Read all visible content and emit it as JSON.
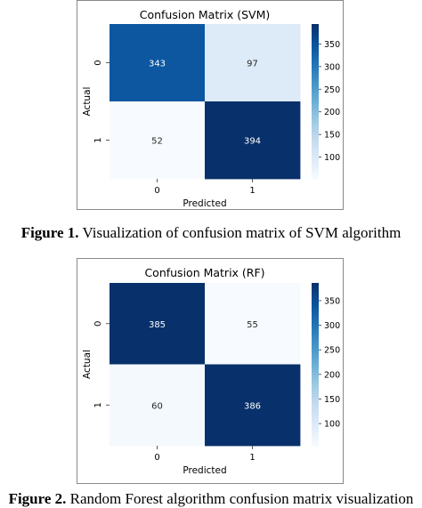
{
  "chart_data": [
    {
      "type": "heatmap",
      "title": "Confusion Matrix (SVM)",
      "xlabel": "Predicted",
      "ylabel": "Actual",
      "x_categories": [
        "0",
        "1"
      ],
      "y_categories": [
        "0",
        "1"
      ],
      "values": [
        [
          343,
          97
        ],
        [
          52,
          394
        ]
      ],
      "colormap": "Blues",
      "colorbar_range": [
        52,
        394
      ],
      "colorbar_ticks": [
        100,
        150,
        200,
        250,
        300,
        350
      ],
      "colors": {
        "low": "#f7fbff",
        "high": "#08306b"
      }
    },
    {
      "type": "heatmap",
      "title": "Confusion Matrix (RF)",
      "xlabel": "Predicted",
      "ylabel": "Actual",
      "x_categories": [
        "0",
        "1"
      ],
      "y_categories": [
        "0",
        "1"
      ],
      "values": [
        [
          385,
          55
        ],
        [
          60,
          386
        ]
      ],
      "colormap": "Blues",
      "colorbar_range": [
        55,
        386
      ],
      "colorbar_ticks": [
        100,
        150,
        200,
        250,
        300,
        350
      ],
      "colors": {
        "low": "#f7fbff",
        "high": "#08306b"
      }
    }
  ],
  "captions": [
    {
      "label": "Figure 1.",
      "text": " Visualization of confusion matrix of SVM algorithm"
    },
    {
      "label": "Figure 2.",
      "text": " Random Forest algorithm confusion matrix visualization"
    }
  ]
}
